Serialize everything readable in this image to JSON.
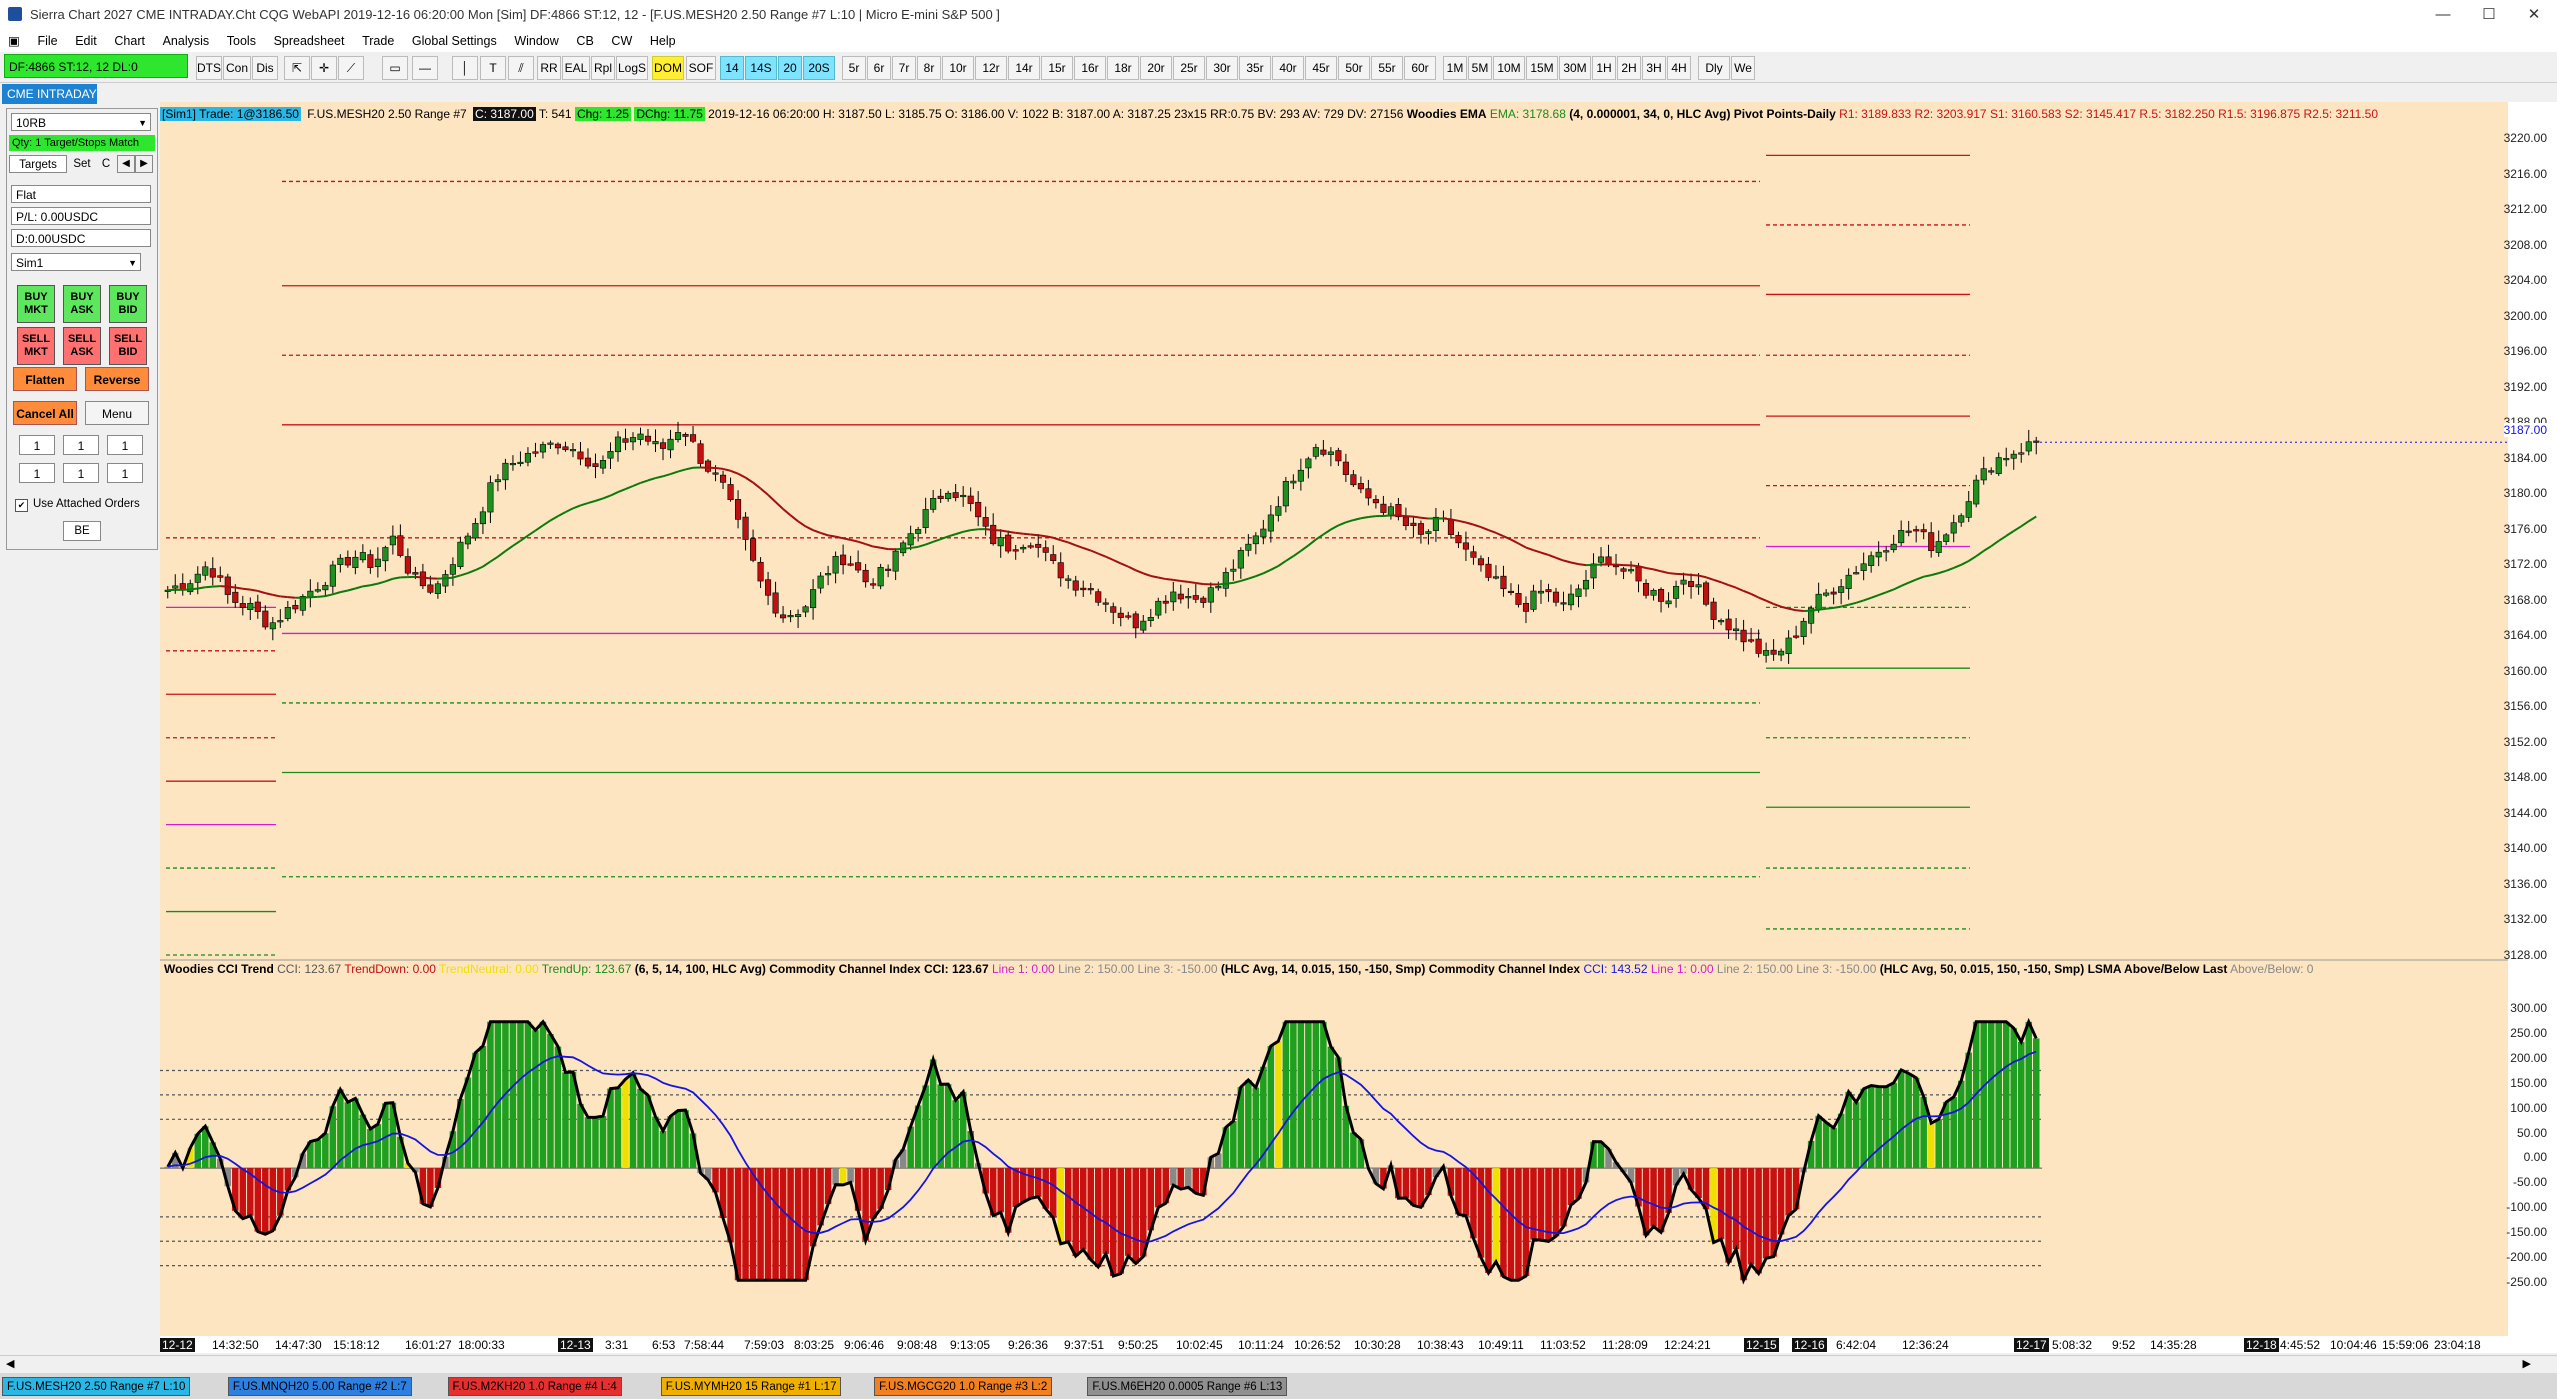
{
  "window": {
    "title": "Sierra Chart 2027 CME INTRADAY.Cht  CQG WebAPI 2019-12-16  06:20:00 Mon [Sim]  DF:4866  ST:12, 12 - [F.US.MESH20  2.50 Range  #7  L:10 | Micro E-mini S&P 500 ]",
    "minimize": "—",
    "maximize": "☐",
    "close": "✕"
  },
  "menu": [
    "File",
    "Edit",
    "Chart",
    "Analysis",
    "Tools",
    "Spreadsheet",
    "Trade",
    "Global Settings",
    "Window",
    "CB",
    "CW",
    "Help"
  ],
  "toolbar": {
    "status": "DF:4866  ST:12, 12  DL:0",
    "buttons": [
      "DTS",
      "Con",
      "Dis"
    ],
    "studies": [
      "RR",
      "EAL",
      "Rpl",
      "LogS",
      "DOM",
      "SOF"
    ],
    "timeframes": [
      "14",
      "14S",
      "20",
      "20S",
      "5r",
      "6r",
      "7r",
      "8r",
      "10r",
      "12r",
      "14r",
      "15r",
      "16r",
      "18r",
      "20r",
      "25r",
      "30r",
      "35r",
      "40r",
      "45r",
      "50r",
      "55r",
      "60r",
      "1M",
      "5M",
      "10M",
      "15M",
      "30M",
      "1H",
      "2H",
      "3H",
      "4H",
      "Dly",
      "We"
    ]
  },
  "chart_tab": "CME INTRADAY",
  "trade_panel": {
    "bar_type": "10RB",
    "qty_match": "Qty: 1 Target/Stops Match",
    "tab_targets": "Targets",
    "tab_set": "Set",
    "tab_c": "C",
    "position": "Flat",
    "pl": "P/L: 0.00USDC",
    "daily": "D:0.00USDC",
    "account": "Sim1",
    "buy_mkt": "BUY MKT",
    "buy_ask": "BUY ASK",
    "buy_bid": "BUY BID",
    "sell_mkt": "SELL MKT",
    "sell_ask": "SELL ASK",
    "sell_bid": "SELL BID",
    "flatten": "Flatten",
    "reverse": "Reverse",
    "cancel_all": "Cancel All",
    "menu": "Menu",
    "qty_cells": [
      "1",
      "1",
      "1",
      "1",
      "1",
      "1"
    ],
    "use_attached": "Use Attached Orders",
    "be": "BE"
  },
  "info_line": {
    "sim_trade": "[Sim1]  Trade: 1@3186.50",
    "symbol": "F.US.MESH20  2.50 Range  #7",
    "close": "C: 3187.00",
    "trades": "T: 541",
    "chg": "Chg: 1.25",
    "dchg": "DChg: 11.75",
    "ohlc": "2019-12-16 06:20:00  H: 3187.50  L: 3185.75  O: 3186.00  V: 1022  B: 3187.00  A: 3187.25  23x15  RR:0.75  BV: 293  AV: 729  DV: 27156",
    "ema_name": "Woodies EMA",
    "ema_val": "EMA: 3178.68",
    "ema_params": "(4, 0.000001, 34, 0, HLC Avg)",
    "pivot_name": "Pivot Points-Daily",
    "pivots": "R1: 3189.833   R2: 3203.917   S1: 3160.583   S2: 3145.417   R.5: 3182.250   R1.5: 3196.875   R2.5: 3211.50"
  },
  "study_line": {
    "trend_name": "Woodies CCI Trend",
    "cci_val": "CCI: 123.67",
    "trend_down": "TrendDown: 0.00",
    "trend_neutral": "TrendNeutral: 0.00",
    "trend_up": "TrendUp: 123.67",
    "params1": "(6, 5, 14, 100, HLC Avg)",
    "cci1_name": "Commodity Channel Index",
    "cci1_val": "CCI: 123.67",
    "cci1_line1": "Line 1: 0.00",
    "cci1_line23": "Line 2: 150.00  Line 3: -150.00",
    "params2": "(HLC Avg, 14, 0.015, 150, -150, Smp)",
    "cci2_name": "Commodity Channel Index",
    "cci2_val": "CCI: 143.52",
    "cci2_line1": "Line 1: 0.00",
    "cci2_line23": "Line 2: 150.00  Line 3: -150.00",
    "params3": "(HLC Avg, 50, 0.015, 150, -150, Smp)",
    "lsma": "LSMA Above/Below Last",
    "lsma_val": "Above/Below: 0"
  },
  "price_axis": [
    "3220.00",
    "3216.00",
    "3212.00",
    "3208.00",
    "3204.00",
    "3200.00",
    "3196.00",
    "3192.00",
    "3188.00",
    "3184.00",
    "3180.00",
    "3176.00",
    "3172.00",
    "3168.00",
    "3164.00",
    "3160.00",
    "3156.00",
    "3152.00",
    "3148.00",
    "3144.00",
    "3140.00",
    "3136.00",
    "3132.00",
    "3128.00"
  ],
  "last_price": "3187.00",
  "cci_axis": [
    "300.00",
    "250.00",
    "200.00",
    "150.00",
    "100.00",
    "50.00",
    "0.00",
    "-50.00",
    "-100.00",
    "-150.00",
    "-200.00",
    "-250.00"
  ],
  "time_axis": [
    {
      "t": "12-12",
      "hl": true
    },
    {
      "t": "14:32:50"
    },
    {
      "t": "14:47:30"
    },
    {
      "t": "15:18:12"
    },
    {
      "t": "16:01:27"
    },
    {
      "t": "18:00:33"
    },
    {
      "t": "12-13",
      "hl": true
    },
    {
      "t": "3:31"
    },
    {
      "t": "6:53"
    },
    {
      "t": "7:58:44"
    },
    {
      "t": "7:59:03"
    },
    {
      "t": "8:03:25"
    },
    {
      "t": "9:06:46"
    },
    {
      "t": "9:08:48"
    },
    {
      "t": "9:13:05"
    },
    {
      "t": "9:26:36"
    },
    {
      "t": "9:37:51"
    },
    {
      "t": "9:50:25"
    },
    {
      "t": "10:02:45"
    },
    {
      "t": "10:11:24"
    },
    {
      "t": "10:26:52"
    },
    {
      "t": "10:30:28"
    },
    {
      "t": "10:38:43"
    },
    {
      "t": "10:49:11"
    },
    {
      "t": "11:03:52"
    },
    {
      "t": "11:28:09"
    },
    {
      "t": "12:24:21"
    },
    {
      "t": "12-15",
      "hl": true
    },
    {
      "t": "12-16",
      "hl": true
    },
    {
      "t": "6:42:04"
    },
    {
      "t": "12:36:24"
    },
    {
      "t": "12-17",
      "hl": true
    },
    {
      "t": "5:08:32"
    },
    {
      "t": "9:52"
    },
    {
      "t": "14:35:28"
    },
    {
      "t": "12-18",
      "hl": true
    },
    {
      "t": "4:45:52"
    },
    {
      "t": "10:04:46"
    },
    {
      "t": "15:59:06"
    },
    {
      "t": "23:04:18"
    }
  ],
  "bottom_tabs": [
    {
      "label": "F.US.MESH20  2.50 Range  #7  L:10",
      "color": "#2ab7e6"
    },
    {
      "label": "F.US.MNQH20  5.00 Range  #2  L:7",
      "color": "#2d7fe0"
    },
    {
      "label": "F.US.M2KH20  1.0 Range  #4  L:4",
      "color": "#e63030"
    },
    {
      "label": "F.US.MYMH20  15 Range  #1  L:17",
      "color": "#f0b000"
    },
    {
      "label": "F.US.MGCG20  1.0 Range  #3  L:2",
      "color": "#f08020"
    },
    {
      "label": "F.US.M6EH20  0.0005 Range  #6  L:13",
      "color": "#909090"
    }
  ],
  "colors": {
    "chart_bg": "#fde5c2",
    "up": "#1f8f1f",
    "down": "#c01010",
    "ema": "#0a7a0a",
    "pivot_r": "#c81414",
    "pivot_s": "#1a8a1a",
    "pivot_pp": "#d01fd0",
    "cci_line": "#1414dc"
  },
  "chart_data": {
    "type": "candlestick",
    "y_range": [
      3128,
      3222
    ],
    "cci_range": [
      -250,
      320
    ],
    "price_path": [
      3170,
      3171,
      3173,
      3169,
      3168,
      3166,
      3168,
      3170,
      3172,
      3174,
      3173,
      3176,
      3171,
      3170,
      3174,
      3178,
      3183,
      3185,
      3186,
      3187,
      3186,
      3184,
      3187,
      3188,
      3186,
      3189,
      3185,
      3182,
      3176,
      3170,
      3167,
      3168,
      3172,
      3174,
      3171,
      3172,
      3176,
      3179,
      3182,
      3180,
      3176,
      3175,
      3176,
      3173,
      3171,
      3170,
      3168,
      3166,
      3168,
      3170,
      3169,
      3170,
      3173,
      3176,
      3180,
      3184,
      3187,
      3185,
      3181,
      3180,
      3178,
      3176,
      3178,
      3175,
      3172,
      3170,
      3168,
      3170,
      3168,
      3171,
      3174,
      3172,
      3170,
      3169,
      3172,
      3168,
      3166,
      3164,
      3162,
      3164,
      3168,
      3170,
      3172,
      3174,
      3176,
      3177,
      3175,
      3178,
      3182,
      3185,
      3186,
      3187
    ]
  }
}
